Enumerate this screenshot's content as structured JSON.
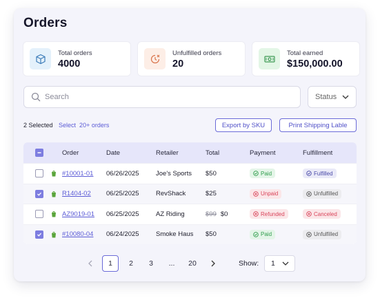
{
  "page": {
    "title": "Orders"
  },
  "stats": [
    {
      "label": "Total orders",
      "value": "4000",
      "icon": "box-icon",
      "tint": "#e4f1fb"
    },
    {
      "label": "Unfulfilled orders",
      "value": "20",
      "icon": "clock-cross-icon",
      "tint": "#fdeee6"
    },
    {
      "label": "Total earned",
      "value": "$150,000.00",
      "icon": "cash-icon",
      "tint": "#e3f6e6"
    }
  ],
  "search": {
    "placeholder": "Search",
    "value": ""
  },
  "status_filter": {
    "label": "Status"
  },
  "selection": {
    "count_text": "2 Selected",
    "select_all_text": "Select  20+ orders"
  },
  "actions": {
    "export_label": "Export by SKU",
    "print_label": "Print Shipping Lable"
  },
  "table": {
    "columns": [
      "Order",
      "Date",
      "Retailer",
      "Total",
      "Payment",
      "Fulfillment"
    ],
    "rows": [
      {
        "checked": false,
        "order": "#10001-01",
        "date": "06/26/2025",
        "retailer": "Joe's Sports",
        "old_total": "",
        "total": "$50",
        "payment": "Paid",
        "payment_kind": "paid",
        "fulfillment": "Fulfilled",
        "fulfillment_kind": "fulfilled"
      },
      {
        "checked": true,
        "order": "R1404-02",
        "date": "06/25/2025",
        "retailer": "RevShack",
        "old_total": "",
        "total": "$25",
        "payment": "Unpaid",
        "payment_kind": "unpaid",
        "fulfillment": "Unfulfilled",
        "fulfillment_kind": "unfulfilled"
      },
      {
        "checked": false,
        "order": "AZ9019-01",
        "date": "06/25/2025",
        "retailer": "AZ Riding",
        "old_total": "$99",
        "total": "$0",
        "payment": "Refunded",
        "payment_kind": "refunded",
        "fulfillment": "Canceled",
        "fulfillment_kind": "canceled"
      },
      {
        "checked": true,
        "order": "#10080-04",
        "date": "06/24/2025",
        "retailer": "Smoke Haus",
        "old_total": "",
        "total": "$50",
        "payment": "Paid",
        "payment_kind": "paid",
        "fulfillment": "Unfulfilled",
        "fulfillment_kind": "unfulfilled"
      }
    ]
  },
  "pagination": {
    "pages": [
      "1",
      "2",
      "3",
      "...",
      "20"
    ],
    "current": "1",
    "show_label": "Show:",
    "show_value": "1"
  },
  "colors": {
    "accent": "#5b5bd6",
    "header_bg": "#e6e6fa",
    "shopify_green": "#5aa53b"
  }
}
